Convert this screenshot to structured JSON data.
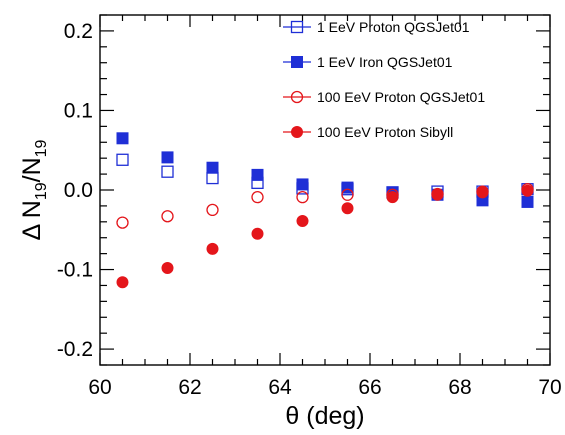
{
  "chart_data": {
    "type": "scatter",
    "title": "",
    "xlabel": "θ (deg)",
    "ylabel": {
      "prefix": "Δ N",
      "sub1": "19",
      "slash": "/N",
      "sub2": "19"
    },
    "xlim": [
      60,
      70
    ],
    "ylim": [
      -0.22,
      0.22
    ],
    "xticks": [
      {
        "value": 60,
        "label": "60"
      },
      {
        "value": 62,
        "label": "62"
      },
      {
        "value": 64,
        "label": "64"
      },
      {
        "value": 66,
        "label": "66"
      },
      {
        "value": 68,
        "label": "68"
      },
      {
        "value": 70,
        "label": "70"
      }
    ],
    "yticks": [
      {
        "value": 0.2,
        "label": "0.2"
      },
      {
        "value": 0.1,
        "label": "0.1"
      },
      {
        "value": 0.0,
        "label": "0.0"
      },
      {
        "value": -0.1,
        "label": "-0.1"
      },
      {
        "value": -0.2,
        "label": "-0.2"
      }
    ],
    "grid": false,
    "legend_position": "top-right",
    "series": [
      {
        "name": "1 EeV Proton QGSJet01",
        "marker": "square-open",
        "color": "#1f2fd6",
        "x": [
          60.5,
          61.5,
          62.5,
          63.5,
          64.5,
          65.5,
          66.5,
          67.5,
          68.5,
          69.5
        ],
        "y": [
          0.038,
          0.023,
          0.015,
          0.009,
          0.002,
          0.001,
          -0.003,
          -0.002,
          -0.002,
          0.001
        ]
      },
      {
        "name": "1 EeV Iron QGSJet01",
        "marker": "square-filled",
        "color": "#1f2fd6",
        "x": [
          60.5,
          61.5,
          62.5,
          63.5,
          64.5,
          65.5,
          66.5,
          67.5,
          68.5,
          69.5
        ],
        "y": [
          0.065,
          0.041,
          0.028,
          0.019,
          0.007,
          0.003,
          -0.003,
          -0.006,
          -0.013,
          -0.015
        ]
      },
      {
        "name": "100 EeV Proton QGSJet01",
        "marker": "circle-open",
        "color": "#e4161b",
        "x": [
          60.5,
          61.5,
          62.5,
          63.5,
          64.5,
          65.5,
          66.5,
          67.5,
          68.5,
          69.5
        ],
        "y": [
          -0.041,
          -0.033,
          -0.025,
          -0.009,
          -0.009,
          -0.006,
          -0.006,
          -0.005,
          -0.002,
          0.001
        ]
      },
      {
        "name": "100 EeV Proton Sibyll",
        "marker": "circle-filled",
        "color": "#e4161b",
        "x": [
          60.5,
          61.5,
          62.5,
          63.5,
          64.5,
          65.5,
          66.5,
          67.5,
          68.5,
          69.5
        ],
        "y": [
          -0.116,
          -0.098,
          -0.074,
          -0.055,
          -0.039,
          -0.023,
          -0.009,
          -0.006,
          -0.003,
          -0.001
        ]
      }
    ]
  }
}
